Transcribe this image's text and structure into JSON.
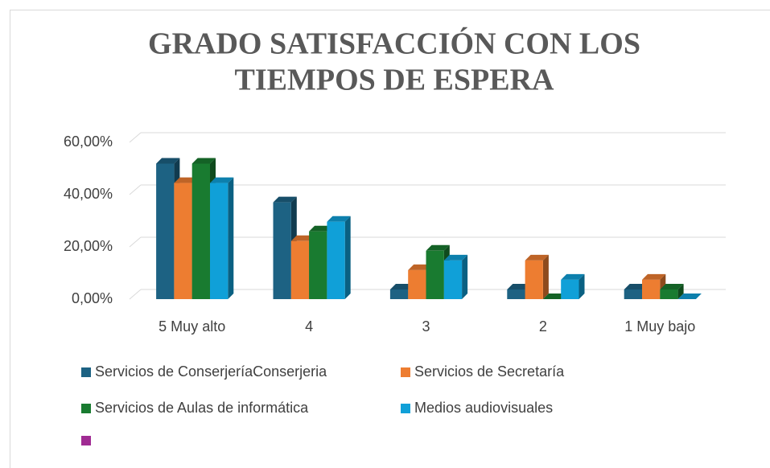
{
  "chart_data": {
    "type": "bar3d",
    "title": [
      "GRADO SATISFACCIÓN CON LOS",
      "TIEMPOS DE ESPERA"
    ],
    "categories": [
      "5 Muy alto",
      "4",
      "3",
      "2",
      "1 Muy bajo"
    ],
    "series": [
      {
        "name": "Servicios de ConserjeríaConserjeria",
        "color": "#1d6283",
        "values": [
          51.85,
          37.04,
          3.7,
          3.7,
          3.7
        ]
      },
      {
        "name": "Servicios de Secretaría",
        "color": "#ed7d31",
        "values": [
          44.44,
          22.22,
          11.11,
          14.81,
          7.41
        ]
      },
      {
        "name": "Servicios de Aulas de informática",
        "color": "#197b30",
        "values": [
          51.85,
          25.93,
          18.52,
          0,
          3.7
        ]
      },
      {
        "name": "Medios audiovisuales",
        "color": "#10a0d8",
        "values": [
          44.44,
          29.63,
          14.81,
          7.41,
          0
        ]
      }
    ],
    "ylim": [
      0,
      60
    ],
    "yticks": [
      {
        "value": 0,
        "label": "0,00%"
      },
      {
        "value": 20,
        "label": "20,00%"
      },
      {
        "value": 40,
        "label": "40,00%"
      },
      {
        "value": 60,
        "label": "60,00%"
      }
    ],
    "grid": true
  }
}
